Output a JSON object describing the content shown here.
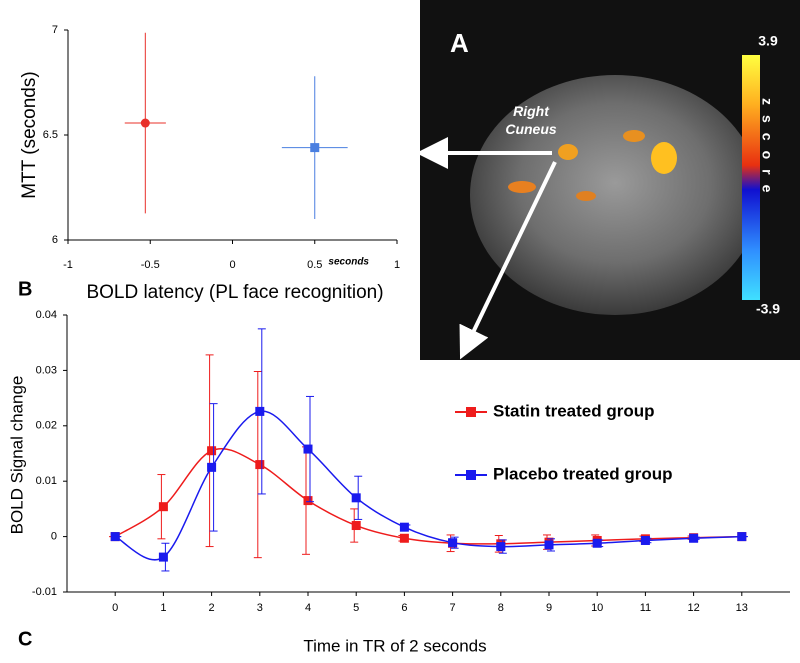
{
  "chart_data": [
    {
      "type": "scatter",
      "panel_label": "B",
      "x_label": "BOLD latency (PL face recognition)",
      "x_unit": "seconds",
      "y_label": "MTT (seconds)",
      "xlim": [
        -1,
        1
      ],
      "xticks": [
        -1,
        -0.5,
        0,
        0.5,
        1
      ],
      "ylim": [
        6,
        7
      ],
      "yticks": [
        6,
        6.5,
        7
      ],
      "series": [
        {
          "color": "#e8302a",
          "marker": "circle",
          "x": [
            -0.53
          ],
          "y": [
            6.557
          ],
          "xerr": [
            0.125
          ],
          "yerr": [
            0.43
          ]
        },
        {
          "color": "#4a7fe0",
          "marker": "square",
          "x": [
            0.5
          ],
          "y": [
            6.44
          ],
          "xerr": [
            0.2
          ],
          "yerr": [
            0.34
          ]
        }
      ]
    },
    {
      "type": "line",
      "panel_label": "C",
      "x_label": "Time in TR of 2 seconds",
      "y_label": "BOLD Signal change",
      "x": [
        0,
        1,
        2,
        3,
        4,
        5,
        6,
        7,
        8,
        9,
        10,
        11,
        12,
        13
      ],
      "xlim": [
        -1,
        14
      ],
      "xticks": [
        0,
        1,
        2,
        3,
        4,
        5,
        6,
        7,
        8,
        9,
        10,
        11,
        12,
        13
      ],
      "ylim": [
        -0.01,
        0.04
      ],
      "yticks": [
        -0.01,
        0,
        0.01,
        0.02,
        0.03,
        0.04
      ],
      "series": [
        {
          "name": "Statin treated group",
          "color": "#ee1c1c",
          "marker": "square",
          "values": [
            0,
            0.0054,
            0.0155,
            0.013,
            0.0065,
            0.002,
            -0.0003,
            -0.0012,
            -0.0013,
            -0.001,
            -0.0007,
            -0.0004,
            -0.0002,
            0
          ],
          "errors": [
            0,
            0.0058,
            0.0173,
            0.0168,
            0.0097,
            0.003,
            0.0005,
            0.0015,
            0.0015,
            0.0013,
            0.001,
            0.0005,
            0.0003,
            0
          ]
        },
        {
          "name": "Placebo treated group",
          "color": "#1a1aee",
          "marker": "square",
          "values": [
            0,
            -0.0037,
            0.0125,
            0.0226,
            0.0158,
            0.007,
            0.0017,
            -0.0011,
            -0.0018,
            -0.0015,
            -0.0012,
            -0.0007,
            -0.0003,
            0
          ],
          "errors": [
            0,
            0.0025,
            0.0115,
            0.0149,
            0.0095,
            0.0039,
            0.0004,
            0.001,
            0.0012,
            0.0011,
            0.0006,
            0.0004,
            0.0002,
            0
          ]
        }
      ]
    }
  ],
  "brain_panel": {
    "panel_label": "A",
    "annotation": "Right Cuneus",
    "colorbar_label": "zscore",
    "colorbar_max": 3.9,
    "colorbar_min": -3.9
  }
}
